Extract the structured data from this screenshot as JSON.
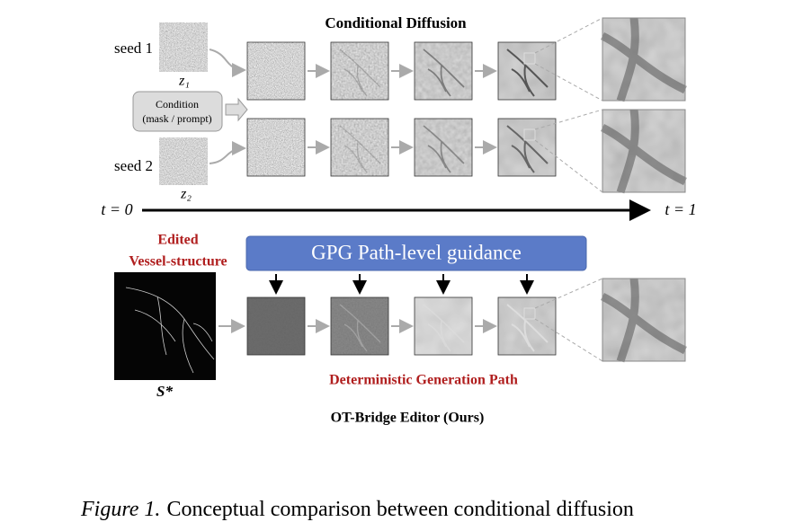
{
  "figure": {
    "top": {
      "title": "Conditional Diffusion",
      "seed_1": "seed 1",
      "z_1": "z₁",
      "seed_2": "seed 2",
      "z_2": "z₂",
      "condition": [
        "Condition",
        "(mask / prompt)"
      ]
    },
    "timeline": {
      "start": "t = 0",
      "end": "t = 1"
    },
    "bottom": {
      "input_label": [
        "Edited",
        "Vessel-structure"
      ],
      "guidance": "GPG Path-level guidance",
      "input_symbol": "S*",
      "path_label": "Deterministic Generation Path",
      "title": "OT-Bridge Editor (Ours)"
    },
    "caption": {
      "label": "Figure 1.",
      "text": "Conceptual comparison between conditional diffusion"
    }
  }
}
